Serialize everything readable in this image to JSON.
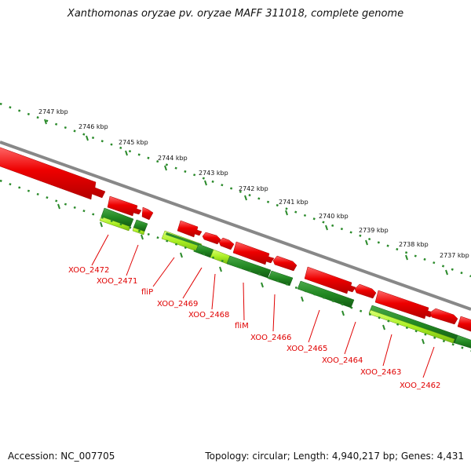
{
  "title": "Xanthomonas oryzae pv. oryzae MAFF 311018, complete genome",
  "footer": {
    "accession": "Accession: NC_007705",
    "stats": "Topology: circular; Length: 4,940,217 bp; Genes: 4,431"
  },
  "colors": {
    "forward_gene": "#e60000",
    "reverse_gene_dark": "#228822",
    "reverse_gene_light": "#aaee22",
    "backbone": "#888888",
    "tick": "#2a8a2a",
    "label": "#e00000"
  },
  "scale_labels": [
    "2747 kbp",
    "2746 kbp",
    "2745 kbp",
    "2744 kbp",
    "2743 kbp",
    "2742 kbp",
    "2741 kbp",
    "2740 kbp",
    "2739 kbp",
    "2738 kbp",
    "2737 kbp"
  ],
  "gene_labels": [
    "XOO_2472",
    "XOO_2471",
    "fliP",
    "XOO_2469",
    "XOO_2468",
    "fliM",
    "XOO_2466",
    "XOO_2465",
    "XOO_2464",
    "XOO_2463",
    "XOO_2462"
  ]
}
